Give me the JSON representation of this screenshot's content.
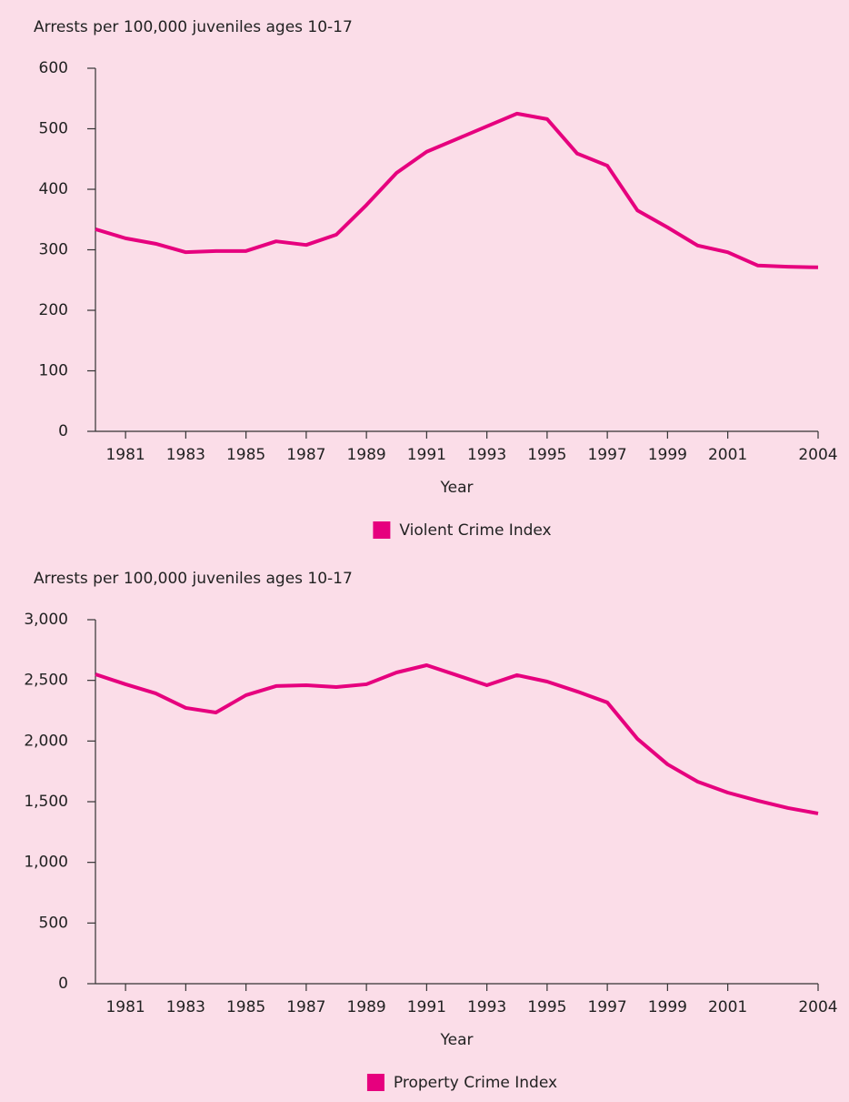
{
  "chart_data": [
    {
      "type": "line",
      "ylabel": "Arrests per 100,000 juveniles ages 10-17",
      "xlabel": "Year",
      "x": [
        1980,
        1981,
        1982,
        1983,
        1984,
        1985,
        1986,
        1987,
        1988,
        1989,
        1990,
        1991,
        1992,
        1993,
        1994,
        1995,
        1996,
        1997,
        1998,
        1999,
        2000,
        2001,
        2002,
        2003,
        2004
      ],
      "series": [
        {
          "name": "Violent Crime Index",
          "color": "#e6007e",
          "values": [
            334,
            319,
            310,
            296,
            298,
            298,
            314,
            308,
            325,
            374,
            427,
            462,
            483,
            504,
            525,
            516,
            459,
            439,
            365,
            337,
            307,
            296,
            274,
            272,
            271
          ]
        }
      ],
      "xlim": [
        1980,
        2004
      ],
      "xticks": [
        1981,
        1983,
        1985,
        1987,
        1989,
        1991,
        1993,
        1995,
        1997,
        1999,
        2001,
        2004
      ],
      "ylim": [
        0,
        600
      ],
      "yticks": [
        0,
        100,
        200,
        300,
        400,
        500,
        600
      ]
    },
    {
      "type": "line",
      "ylabel": "Arrests per 100,000 juveniles ages 10-17",
      "xlabel": "Year",
      "x": [
        1980,
        1981,
        1982,
        1983,
        1984,
        1985,
        1986,
        1987,
        1988,
        1989,
        1990,
        1991,
        1992,
        1993,
        1994,
        1995,
        1996,
        1997,
        1998,
        1999,
        2000,
        2001,
        2002,
        2003,
        2004
      ],
      "series": [
        {
          "name": "Property Crime Index",
          "color": "#e6007e",
          "values": [
            2550,
            2468,
            2393,
            2273,
            2235,
            2378,
            2453,
            2460,
            2445,
            2468,
            2565,
            2625,
            2543,
            2460,
            2543,
            2490,
            2408,
            2318,
            2018,
            1808,
            1665,
            1575,
            1508,
            1448,
            1403
          ]
        }
      ],
      "xlim": [
        1980,
        2004
      ],
      "xticks": [
        1981,
        1983,
        1985,
        1987,
        1989,
        1991,
        1993,
        1995,
        1997,
        1999,
        2001,
        2004
      ],
      "ylim": [
        0,
        3000
      ],
      "yticks": [
        0,
        500,
        {
          "value": 1000,
          "label": "1,000"
        },
        {
          "value": 1500,
          "label": "1,500"
        },
        {
          "value": 2000,
          "label": "2,000"
        },
        {
          "value": 2500,
          "label": "2,500"
        },
        {
          "value": 3000,
          "label": "3,000"
        }
      ]
    }
  ]
}
